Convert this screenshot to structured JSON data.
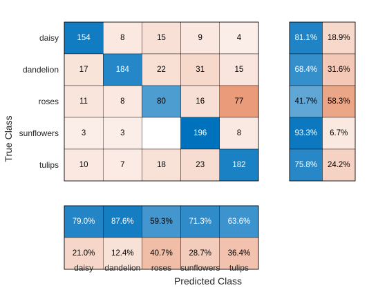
{
  "chart_data": {
    "type": "heatmap",
    "title": "",
    "xlabel": "Predicted Class",
    "ylabel": "True Class",
    "classes": [
      "daisy",
      "dandelion",
      "roses",
      "sunflowers",
      "tulips"
    ],
    "matrix": [
      [
        154,
        8,
        15,
        9,
        4
      ],
      [
        17,
        184,
        22,
        31,
        15
      ],
      [
        11,
        8,
        80,
        16,
        77
      ],
      [
        3,
        3,
        null,
        196,
        8
      ],
      [
        10,
        7,
        18,
        23,
        182
      ]
    ],
    "row_summary": [
      [
        "81.1%",
        "18.9%"
      ],
      [
        "68.4%",
        "31.6%"
      ],
      [
        "41.7%",
        "58.3%"
      ],
      [
        "93.3%",
        "6.7%"
      ],
      [
        "75.8%",
        "24.2%"
      ]
    ],
    "column_summary": [
      [
        "79.0%",
        "87.6%",
        "59.3%",
        "71.3%",
        "63.6%"
      ],
      [
        "21.0%",
        "12.4%",
        "40.7%",
        "28.7%",
        "36.4%"
      ]
    ],
    "colors": {
      "correct_strong": "#0072BD",
      "incorrect_strong": "#D95319",
      "background": "#ffffff",
      "text_dark": "#000000",
      "text_light": "#ffffff",
      "grid": "#000000"
    }
  }
}
